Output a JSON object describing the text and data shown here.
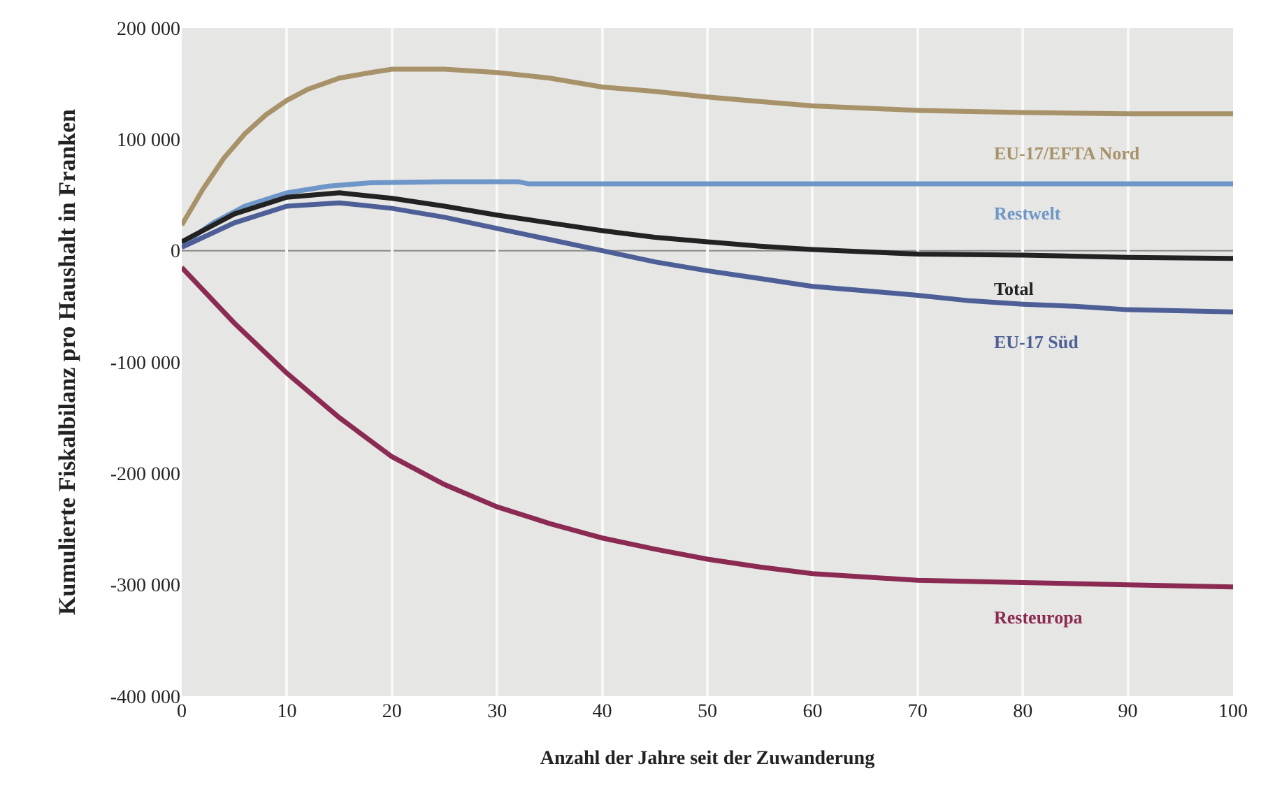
{
  "chart_data": {
    "type": "line",
    "xlabel": "Anzahl der Jahre seit der Zuwanderung",
    "ylabel": "Kumulierte Fiskalbilanz pro Haushalt in Franken",
    "xlim": [
      0,
      100
    ],
    "xticks": [
      0,
      10,
      20,
      30,
      40,
      50,
      60,
      70,
      80,
      90,
      100
    ],
    "ylim": [
      -400000,
      200000
    ],
    "yticks": [
      {
        "value": 200000,
        "label": "200 000"
      },
      {
        "value": 100000,
        "label": "100 000"
      },
      {
        "value": 0,
        "label": "0"
      },
      {
        "value": -100000,
        "label": "-100 000"
      },
      {
        "value": -200000,
        "label": "-200 000"
      },
      {
        "value": -300000,
        "label": "-300 000"
      },
      {
        "value": -400000,
        "label": "-400 000"
      }
    ],
    "grid": "x",
    "legend": false,
    "marker": "none",
    "line_style": "solid",
    "ref_lines": [
      {
        "axis": "y",
        "value": 0,
        "label": null,
        "color": "#8a8a8a"
      }
    ],
    "series": [
      {
        "name": "EU-17/EFTA Nord",
        "color": "#a89269",
        "x": [
          0,
          2,
          4,
          6,
          8,
          10,
          12,
          15,
          18,
          20,
          25,
          30,
          35,
          40,
          45,
          50,
          55,
          60,
          65,
          70,
          75,
          80,
          90,
          100
        ],
        "values": [
          23000,
          55000,
          83000,
          105000,
          122000,
          135000,
          145000,
          155000,
          160000,
          163000,
          163000,
          160000,
          155000,
          147000,
          143000,
          138000,
          134000,
          130000,
          128000,
          126000,
          125000,
          124000,
          123000,
          123000
        ]
      },
      {
        "name": "Restwelt",
        "color": "#6f96c8",
        "x": [
          0,
          3,
          6,
          10,
          14,
          18,
          25,
          32,
          33,
          100
        ],
        "values": [
          5000,
          25000,
          40000,
          52000,
          58000,
          61000,
          62000,
          62000,
          60000,
          60000
        ]
      },
      {
        "name": "Total",
        "color": "#222222",
        "x": [
          0,
          5,
          10,
          15,
          20,
          25,
          30,
          35,
          40,
          45,
          50,
          55,
          60,
          65,
          70,
          80,
          90,
          100
        ],
        "values": [
          8000,
          33000,
          48000,
          52000,
          47000,
          40000,
          32000,
          25000,
          18000,
          12000,
          8000,
          4000,
          1000,
          -1000,
          -3000,
          -4000,
          -6000,
          -7000
        ]
      },
      {
        "name": "EU-17 Süd",
        "color": "#4e5f97",
        "x": [
          0,
          5,
          10,
          15,
          20,
          25,
          30,
          35,
          40,
          45,
          50,
          55,
          60,
          65,
          70,
          75,
          80,
          85,
          90,
          100
        ],
        "values": [
          3000,
          25000,
          40000,
          43000,
          38000,
          30000,
          20000,
          10000,
          0,
          -10000,
          -18000,
          -25000,
          -32000,
          -36000,
          -40000,
          -45000,
          -48000,
          -50000,
          -53000,
          -55000
        ]
      },
      {
        "name": "Resteuropa",
        "color": "#8b2a52",
        "x": [
          0,
          5,
          10,
          15,
          20,
          25,
          30,
          35,
          40,
          45,
          50,
          55,
          60,
          65,
          70,
          80,
          90,
          100
        ],
        "values": [
          -15000,
          -65000,
          -110000,
          -150000,
          -185000,
          -210000,
          -230000,
          -245000,
          -258000,
          -268000,
          -277000,
          -284000,
          -290000,
          -293000,
          -296000,
          -298000,
          -300000,
          -302000
        ]
      }
    ]
  }
}
